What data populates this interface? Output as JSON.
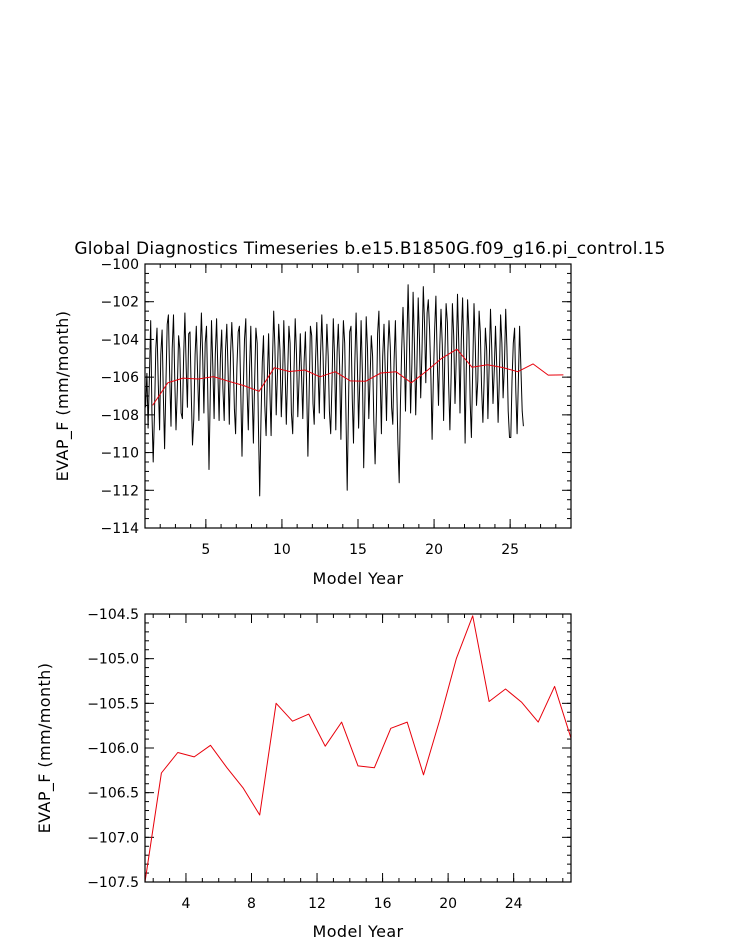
{
  "chart_data": [
    {
      "type": "line",
      "title": "Global Diagnostics Timeseries b.e15.B1850G.f09_g16.pi_control.15",
      "xlabel": "Model Year",
      "ylabel": "EVAP_F (mm/month)",
      "xlim": [
        1,
        29
      ],
      "ylim": [
        -114,
        -100
      ],
      "xticks": [
        5,
        10,
        15,
        20,
        25
      ],
      "xtick_labels": [
        "5",
        "10",
        "15",
        "20",
        "25"
      ],
      "yticks": [
        -114,
        -112,
        -110,
        -108,
        -106,
        -104,
        -102,
        -100
      ],
      "ytick_labels": [
        "−114",
        "−112",
        "−110",
        "−108",
        "−106",
        "−104",
        "−102",
        "−100"
      ],
      "series": [
        {
          "color": "#000000",
          "x_start": 1.04,
          "x_step": 0.0833333,
          "values": [
            -107.6,
            -105.8,
            -108.7,
            -106.0,
            -103.0,
            -107.8,
            -110.5,
            -107.9,
            -104.5,
            -103.4,
            -106.4,
            -108.8,
            -104.8,
            -103.5,
            -107.1,
            -109.8,
            -106.4,
            -103.2,
            -102.7,
            -106.0,
            -108.6,
            -104.5,
            -102.7,
            -106.2,
            -108.8,
            -106.7,
            -103.8,
            -104.5,
            -107.9,
            -108.2,
            -105.0,
            -102.6,
            -105.5,
            -107.6,
            -103.7,
            -103.6,
            -107.0,
            -109.6,
            -108.2,
            -104.8,
            -103.3,
            -105.8,
            -108.3,
            -105.0,
            -102.6,
            -104.9,
            -107.9,
            -104.2,
            -103.3,
            -106.6,
            -110.9,
            -106.8,
            -103.0,
            -105.4,
            -108.2,
            -104.8,
            -102.9,
            -105.8,
            -108.3,
            -105.0,
            -103.5,
            -106.6,
            -108.3,
            -104.6,
            -103.2,
            -105.5,
            -108.5,
            -104.7,
            -103.1,
            -104.8,
            -107.7,
            -109.0,
            -105.5,
            -103.6,
            -103.3,
            -106.6,
            -110.2,
            -106.8,
            -104.0,
            -102.9,
            -106.6,
            -108.8,
            -105.5,
            -103.3,
            -106.7,
            -109.5,
            -106.3,
            -103.4,
            -104.2,
            -108.5,
            -112.3,
            -108.2,
            -105.2,
            -103.8,
            -107.5,
            -109.1,
            -106.1,
            -103.7,
            -106.8,
            -109.1,
            -105.3,
            -102.5,
            -104.4,
            -108.0,
            -105.7,
            -103.2,
            -104.6,
            -108.1,
            -106.3,
            -103.0,
            -105.6,
            -108.5,
            -105.9,
            -103.3,
            -104.2,
            -107.9,
            -109.0,
            -105.9,
            -102.9,
            -104.8,
            -108.1,
            -106.2,
            -103.7,
            -106.0,
            -108.2,
            -105.2,
            -103.6,
            -106.4,
            -110.2,
            -106.7,
            -103.3,
            -103.8,
            -107.4,
            -108.5,
            -105.2,
            -103.1,
            -105.5,
            -107.9,
            -104.7,
            -102.7,
            -104.9,
            -108.2,
            -105.7,
            -103.2,
            -104.9,
            -107.8,
            -109.0,
            -106.3,
            -102.9,
            -104.8,
            -108.8,
            -104.7,
            -103.2,
            -105.4,
            -109.3,
            -105.8,
            -103.0,
            -104.2,
            -107.8,
            -112.0,
            -107.5,
            -103.6,
            -103.3,
            -107.2,
            -109.5,
            -105.3,
            -102.6,
            -105.2,
            -108.7,
            -106.0,
            -103.0,
            -105.8,
            -110.8,
            -107.2,
            -102.8,
            -104.5,
            -108.2,
            -106.2,
            -103.8,
            -104.9,
            -108.3,
            -110.6,
            -107.8,
            -103.7,
            -102.5,
            -106.0,
            -109.0,
            -104.9,
            -103.2,
            -105.6,
            -108.3,
            -104.7,
            -103.0,
            -104.4,
            -107.6,
            -108.5,
            -105.1,
            -103.0,
            -106.1,
            -109.5,
            -111.6,
            -107.5,
            -104.5,
            -102.3,
            -104.6,
            -107.8,
            -104.4,
            -101.1,
            -103.9,
            -107.9,
            -105.3,
            -101.5,
            -104.2,
            -108.0,
            -105.4,
            -101.8,
            -104.1,
            -107.1,
            -104.6,
            -101.2,
            -103.1,
            -106.3,
            -102.6,
            -101.9,
            -103.5,
            -106.0,
            -109.3,
            -106.0,
            -103.4,
            -101.7,
            -105.0,
            -107.5,
            -104.3,
            -102.4,
            -104.3,
            -108.3,
            -105.0,
            -102.1,
            -103.1,
            -106.3,
            -108.8,
            -105.8,
            -102.1,
            -103.8,
            -107.4,
            -105.1,
            -101.6,
            -104.3,
            -107.9,
            -104.0,
            -101.8,
            -104.6,
            -109.5,
            -105.3,
            -101.9,
            -103.6,
            -107.4,
            -109.2,
            -105.6,
            -102.1,
            -104.3,
            -107.5,
            -106.2,
            -102.5,
            -103.6,
            -106.6,
            -108.4,
            -106.2,
            -103.4,
            -104.6,
            -108.2,
            -105.3,
            -102.4,
            -104.4,
            -107.4,
            -105.6,
            -103.3,
            -105.5,
            -108.4,
            -106.2,
            -102.7,
            -104.2,
            -107.1,
            -105.4,
            -102.4,
            -104.4,
            -107.8,
            -109.2,
            -109.2,
            -106.2,
            -104.2,
            -103.4,
            -106.7,
            -109.0,
            -106.1,
            -103.3,
            -105.5,
            -107.8,
            -108.6
          ]
        },
        {
          "color": "#e8000b",
          "x": [
            1.5,
            2.5,
            3.5,
            4.5,
            5.5,
            6.5,
            7.5,
            8.5,
            9.5,
            10.5,
            11.5,
            12.5,
            13.5,
            14.5,
            15.5,
            16.5,
            17.5,
            18.5,
            19.5,
            20.5,
            21.5,
            22.5,
            23.5,
            24.5,
            25.5,
            26.5,
            27.5,
            28.5
          ],
          "values": [
            -107.5,
            -106.3,
            -106.05,
            -106.1,
            -105.97,
            -106.22,
            -106.45,
            -106.75,
            -105.5,
            -105.7,
            -105.62,
            -105.98,
            -105.71,
            -106.2,
            -106.22,
            -105.78,
            -105.71,
            -106.3,
            -105.68,
            -105.0,
            -104.52,
            -105.48,
            -105.34,
            -105.49,
            -105.71,
            -105.3,
            -105.89,
            -105.88
          ]
        }
      ]
    },
    {
      "type": "line",
      "xlabel": "Model Year",
      "ylabel": "EVAP_F (mm/month)",
      "xlim": [
        1.5,
        27.5
      ],
      "ylim": [
        -107.5,
        -104.5
      ],
      "xticks": [
        4,
        8,
        12,
        16,
        20,
        24
      ],
      "xtick_labels": [
        "4",
        "8",
        "12",
        "16",
        "20",
        "24"
      ],
      "yticks": [
        -107.5,
        -107.0,
        -106.5,
        -106.0,
        -105.5,
        -105.0,
        -104.5
      ],
      "ytick_labels": [
        "−107.5",
        "−107.0",
        "−106.5",
        "−106.0",
        "−105.5",
        "−105.0",
        "−104.5"
      ],
      "series": [
        {
          "color": "#e8000b",
          "x": [
            1.5,
            2.5,
            3.5,
            4.5,
            5.5,
            6.5,
            7.5,
            8.5,
            9.5,
            10.5,
            11.5,
            12.5,
            13.5,
            14.5,
            15.5,
            16.5,
            17.5,
            18.5,
            19.5,
            20.5,
            21.5,
            22.5,
            23.5,
            24.5,
            25.5,
            26.5,
            27.5
          ],
          "values": [
            -107.5,
            -106.28,
            -106.05,
            -106.1,
            -105.97,
            -106.22,
            -106.45,
            -106.75,
            -105.5,
            -105.7,
            -105.62,
            -105.98,
            -105.71,
            -106.2,
            -106.22,
            -105.78,
            -105.71,
            -106.3,
            -105.68,
            -105.0,
            -104.52,
            -105.48,
            -105.34,
            -105.49,
            -105.71,
            -105.31,
            -105.89
          ]
        }
      ]
    }
  ]
}
